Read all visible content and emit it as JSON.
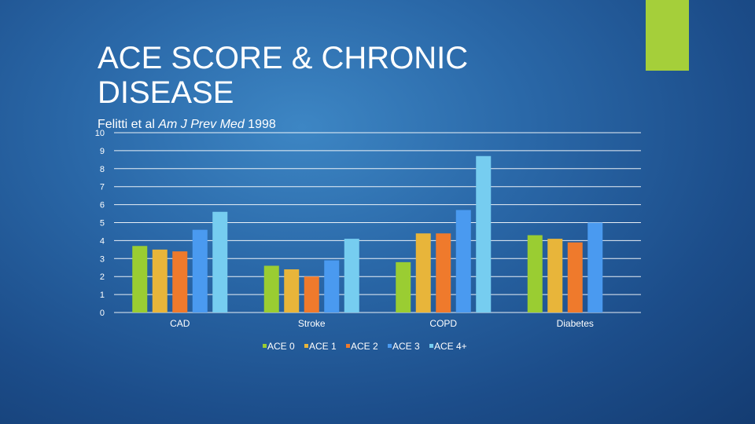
{
  "slide": {
    "title_line1": "ACE SCORE & CHRONIC",
    "title_line2": "DISEASE",
    "citation_prefix": "Felitti et al ",
    "citation_journal": "Am J Prev Med",
    "citation_year": " 1998"
  },
  "colors": {
    "accent": "#a5cf3a",
    "ace0": "#9acd32",
    "ace1": "#e8b53a",
    "ace2": "#ef7a2c",
    "ace3": "#4a9af0",
    "ace4": "#76cdf0"
  },
  "chart_data": {
    "type": "bar",
    "title": "",
    "xlabel": "",
    "ylabel": "",
    "ylim": [
      0,
      10
    ],
    "yticks": [
      0,
      1,
      2,
      3,
      4,
      5,
      6,
      7,
      8,
      9,
      10
    ],
    "grid": true,
    "legend_position": "bottom",
    "categories": [
      "CAD",
      "Stroke",
      "COPD",
      "Diabetes"
    ],
    "series": [
      {
        "name": "ACE 0",
        "values": [
          3.7,
          2.6,
          2.8,
          4.3
        ]
      },
      {
        "name": "ACE 1",
        "values": [
          3.5,
          2.4,
          4.4,
          4.1
        ]
      },
      {
        "name": "ACE 2",
        "values": [
          3.4,
          2.0,
          4.4,
          3.9
        ]
      },
      {
        "name": "ACE 3",
        "values": [
          4.6,
          2.9,
          5.7,
          5.0
        ]
      },
      {
        "name": "ACE 4+",
        "values": [
          5.6,
          4.1,
          8.7,
          null
        ]
      }
    ]
  }
}
